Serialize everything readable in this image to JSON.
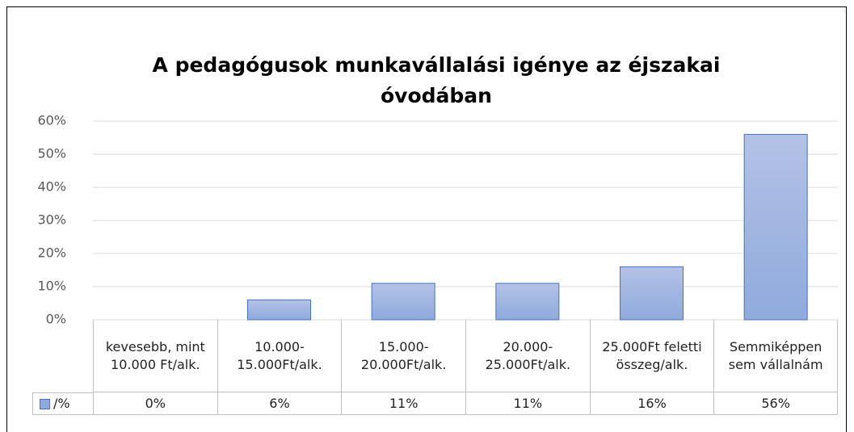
{
  "chart_data": {
    "type": "bar",
    "title": "A pedagógusok munkavállalási igénye az éjszakai óvodában",
    "categories": [
      "kevesebb, mint 10.000 Ft/alk.",
      "10.000-15.000Ft/alk.",
      "15.000-20.000Ft/alk.",
      "20.000-25.000Ft/alk.",
      "25.000Ft feletti összeg/alk.",
      "Semmiképpen sem vállalnám"
    ],
    "series": [
      {
        "name": "/%",
        "color": "#8faadc",
        "values": [
          0,
          6,
          11,
          11,
          16,
          56
        ],
        "value_labels": [
          "0%",
          "6%",
          "11%",
          "11%",
          "16%",
          "56%"
        ]
      }
    ],
    "ylim": [
      0,
      60
    ],
    "yticks": [
      {
        "value": 0,
        "label": "0%"
      },
      {
        "value": 10,
        "label": "10%"
      },
      {
        "value": 20,
        "label": "20%"
      },
      {
        "value": 30,
        "label": "30%"
      },
      {
        "value": 40,
        "label": "40%"
      },
      {
        "value": 50,
        "label": "50%"
      },
      {
        "value": 60,
        "label": "60%"
      }
    ],
    "grid": true
  }
}
